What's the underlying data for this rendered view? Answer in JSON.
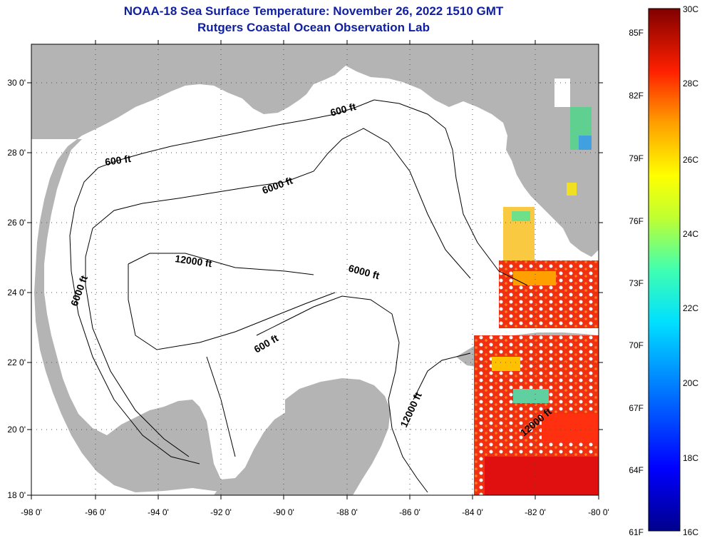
{
  "title_line1": "NOAA-18 Sea Surface Temperature:  November 26, 2022 1510 GMT",
  "title_line2": "Rutgers Coastal Ocean Observation Lab",
  "lon_ticks": [
    "-98 0'",
    "-96 0'",
    "-94 0'",
    "-92 0'",
    "-90 0'",
    "-88 0'",
    "-86 0'",
    "-84 0'",
    "-82 0'",
    "-80 0'"
  ],
  "lat_ticks": [
    "30 0'",
    "28 0'",
    "26 0'",
    "24 0'",
    "22 0'",
    "20 0'",
    "18 0'"
  ],
  "contour_labels": [
    "600 ft",
    "600 ft",
    "6000 ft",
    "12000 ft",
    "6000 ft",
    "6000 ft",
    "600 ft",
    "12000 ft",
    "12000 ft"
  ],
  "colorbar": {
    "fahrenheit_labels": [
      "85F",
      "82F",
      "79F",
      "76F",
      "73F",
      "70F",
      "67F",
      "64F",
      "61F"
    ],
    "celsius_labels": [
      "30C",
      "28C",
      "26C",
      "24C",
      "22C",
      "20C",
      "18C",
      "16C"
    ]
  },
  "colors": {
    "land": "#b4b4b4",
    "ocean_nodata": "#ffffff",
    "title": "#1020a0"
  }
}
